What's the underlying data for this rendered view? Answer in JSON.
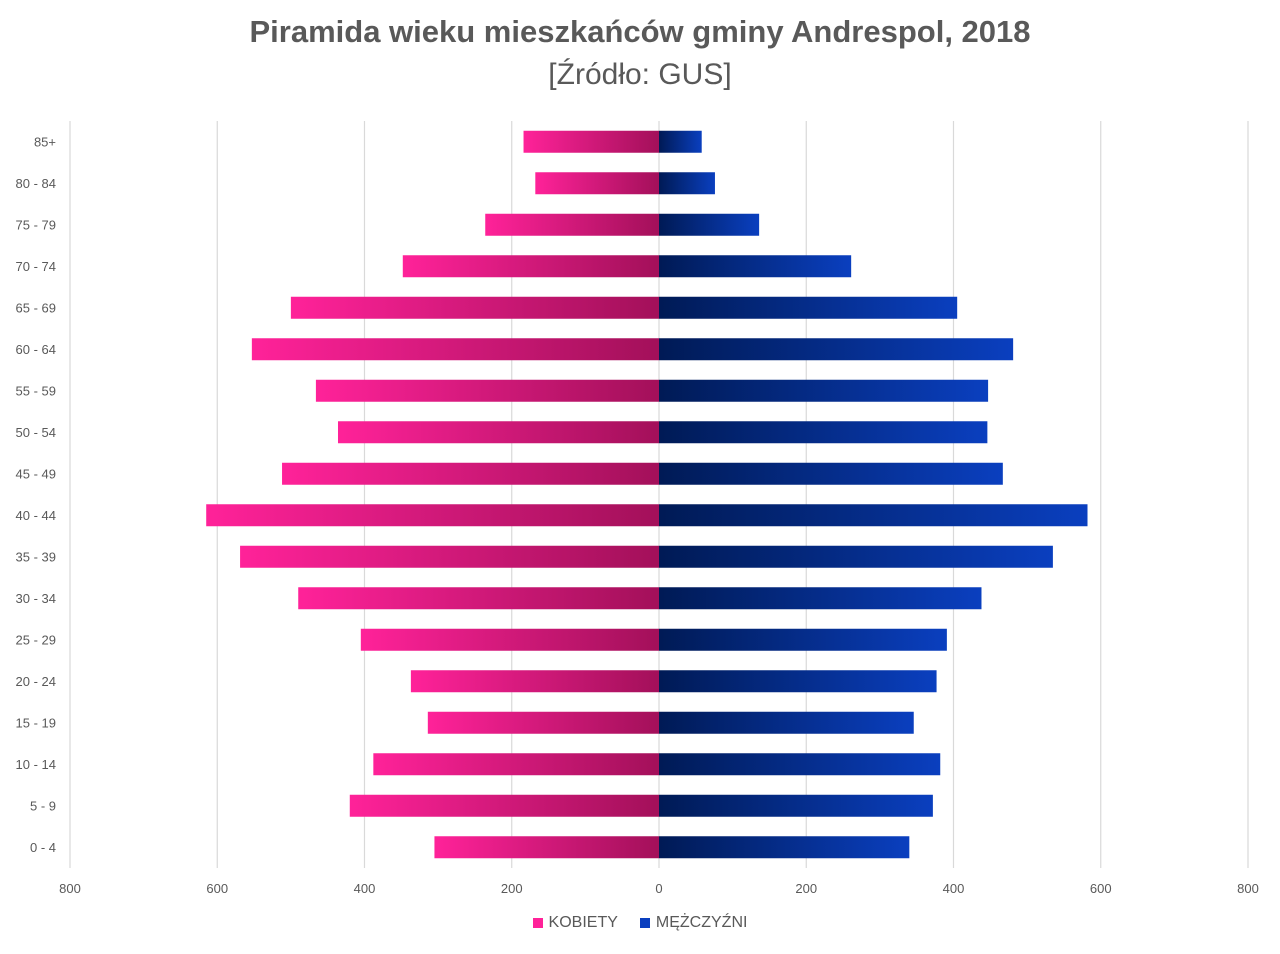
{
  "chart_data": {
    "type": "bar",
    "orientation": "horizontal-population-pyramid",
    "title": "Piramida wieku mieszkańców gminy Andrespol, 2018",
    "subtitle": "[Źródło: GUS]",
    "categories": [
      "85+",
      "80 - 84",
      "75 - 79",
      "70 - 74",
      "65 - 69",
      "60 - 64",
      "55 - 59",
      "50 - 54",
      "45 - 49",
      "40 - 44",
      "35 - 39",
      "30 - 34",
      "25 - 29",
      "20 - 24",
      "15 - 19",
      "10 - 14",
      "5 - 9",
      "0 - 4"
    ],
    "series": [
      {
        "name": "KOBIETY",
        "color": "#FF2299",
        "color_dark": "#A3105A",
        "values": [
          184,
          168,
          236,
          348,
          500,
          553,
          466,
          436,
          512,
          615,
          569,
          490,
          405,
          337,
          314,
          388,
          420,
          305
        ]
      },
      {
        "name": "MĘŻCZYŹNI",
        "color": "#0A3FBF",
        "color_dark": "#001A55",
        "values": [
          58,
          76,
          136,
          261,
          405,
          481,
          447,
          446,
          467,
          582,
          535,
          438,
          391,
          377,
          346,
          382,
          372,
          340
        ]
      }
    ],
    "xlim": [
      -800,
      800
    ],
    "xticks": [
      -800,
      -600,
      -400,
      -200,
      0,
      200,
      400,
      600,
      800
    ],
    "xtick_labels": [
      "800",
      "600",
      "400",
      "200",
      "0",
      "200",
      "400",
      "600",
      "800"
    ],
    "grid": true,
    "legend_position": "bottom-center"
  }
}
